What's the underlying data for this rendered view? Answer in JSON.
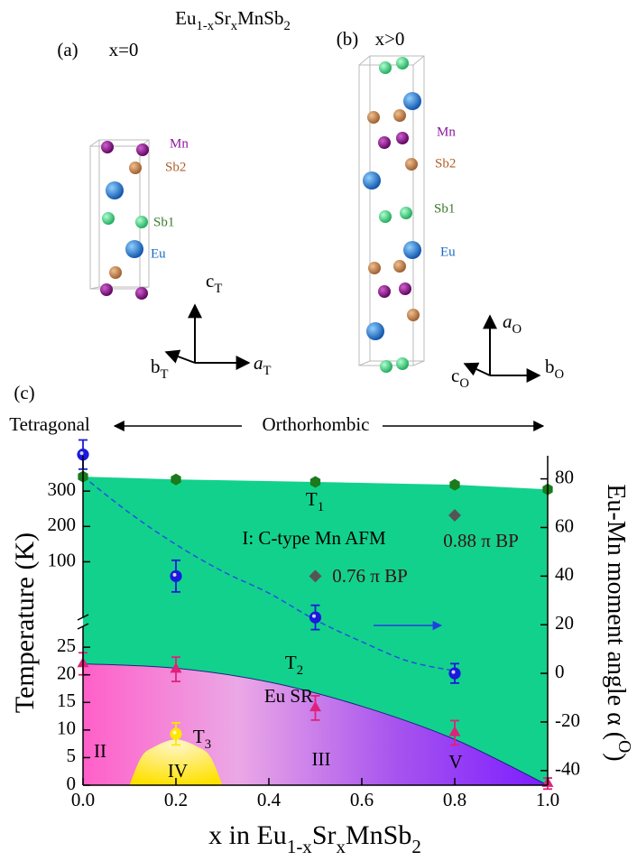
{
  "panels": {
    "title": [
      "Eu",
      "1-x",
      "Sr",
      "x",
      "MnSb",
      "2"
    ],
    "a": {
      "label": "(a)",
      "composition": "x=0",
      "atoms": {
        "mn": "Mn",
        "sb2": "Sb2",
        "sb1": "Sb1",
        "eu": "Eu"
      },
      "axes": {
        "c": [
          "c",
          "T"
        ],
        "b": [
          "b",
          "T"
        ],
        "a": [
          "a",
          "T"
        ]
      }
    },
    "b": {
      "label": "(b)",
      "composition": "x>0",
      "atoms": {
        "mn": "Mn",
        "sb2": "Sb2",
        "sb1": "Sb1",
        "eu": "Eu"
      },
      "axes": {
        "a": [
          "a",
          "O"
        ],
        "c": [
          "c",
          "O"
        ],
        "b": [
          "b",
          "O"
        ]
      }
    },
    "c": {
      "label": "(c)"
    }
  },
  "chart_data": {
    "type": "scatter",
    "phases": {
      "left": "Tetragonal",
      "right": "Orthorhombic"
    },
    "xlabel": [
      "x in Eu",
      "1-x",
      "Sr",
      "x",
      "MnSb",
      "2"
    ],
    "ylabel": "Temperature (K)",
    "y2label": [
      "Eu-Mn moment angle α (",
      "O",
      ")"
    ],
    "xlim": [
      0,
      1
    ],
    "xticks": [
      {
        "value": 0,
        "label": "0.0"
      },
      0.2,
      0.4,
      0.6,
      0.8,
      {
        "value": 1,
        "label": "1.0"
      }
    ],
    "ylim": [
      0,
      29.6
    ],
    "yticks": [
      0,
      5,
      10,
      15,
      20,
      25
    ],
    "ylim_upper": [
      -70,
      400
    ],
    "yticks_upper": [
      100,
      200,
      300
    ],
    "y2lim": [
      -46,
      89.5
    ],
    "y2ticks": [
      -40,
      -20,
      0,
      20,
      40,
      60,
      80
    ],
    "labels": {
      "t1": [
        "T",
        "1"
      ],
      "t2": [
        "T",
        "2"
      ],
      "t3": [
        "T",
        "3"
      ],
      "phase_i": "I: C-type Mn AFM",
      "eu_sr": "Eu SR",
      "ii": "II",
      "iii": "III",
      "iv": "IV",
      "v": "V",
      "bp088": "0.88 π BP",
      "bp076": "0.76 π BP"
    },
    "series": [
      {
        "x": [
          0,
          0.2,
          0.5,
          0.8,
          1.0
        ],
        "values": [
          341,
          333,
          326,
          318,
          305
        ],
        "axis": "y_upper",
        "marker": "hexagon",
        "color": "#1b7a1b",
        "fill": "#12d18d"
      },
      {
        "x": [
          0,
          0.2,
          0.5,
          0.8,
          1.0
        ],
        "values": [
          22,
          21,
          14,
          9.5,
          0.3
        ],
        "errors": [
          2,
          2.2,
          2.2,
          2.2,
          1
        ],
        "axis": "y",
        "marker": "triangle",
        "color": "#e0217a"
      },
      {
        "x": [
          0.2
        ],
        "values": [
          9.3
        ],
        "errors": [
          2
        ],
        "axis": "y",
        "marker": "circle",
        "color": "#ffe600"
      },
      {
        "x": [
          0,
          0.2,
          0.5,
          0.8
        ],
        "values": [
          90,
          40,
          23,
          0
        ],
        "errors": [
          6,
          6.5,
          5,
          4
        ],
        "axis": "y2",
        "marker": "circle",
        "color": "#1a1adc"
      },
      {
        "x": [
          0,
          0.1,
          0.2,
          0.3,
          0.4,
          0.5,
          0.6,
          0.7,
          0.8
        ],
        "values": [
          81,
          66,
          53,
          42,
          33,
          22,
          13,
          5,
          1
        ],
        "axis": "y2",
        "style": "dashed",
        "color": "#2050e0"
      },
      {
        "x": [
          0.5,
          0.8
        ],
        "values": [
          40,
          65
        ],
        "axis": "y2",
        "marker": "diamond",
        "color": "#555555"
      },
      {
        "x": [
          0,
          0.2,
          0.4,
          0.6,
          0.8,
          1.0
        ],
        "values": [
          22,
          21.2,
          18.7,
          14.3,
          8.3,
          0
        ],
        "axis": "y",
        "style": "area",
        "color": "#1a237e",
        "colors": [
          "#ff5fc8",
          "#eba8e6",
          "#a855ee",
          "#7c1cff"
        ]
      },
      {
        "x": [
          0.1,
          0.125,
          0.15,
          0.2,
          0.25,
          0.275,
          0.3
        ],
        "values": [
          0,
          5,
          6.8,
          8.3,
          6.8,
          5,
          0
        ],
        "axis": "y",
        "style": "area",
        "color": "none",
        "colors": [
          "#fff6c8",
          "#ffe100"
        ]
      }
    ]
  }
}
